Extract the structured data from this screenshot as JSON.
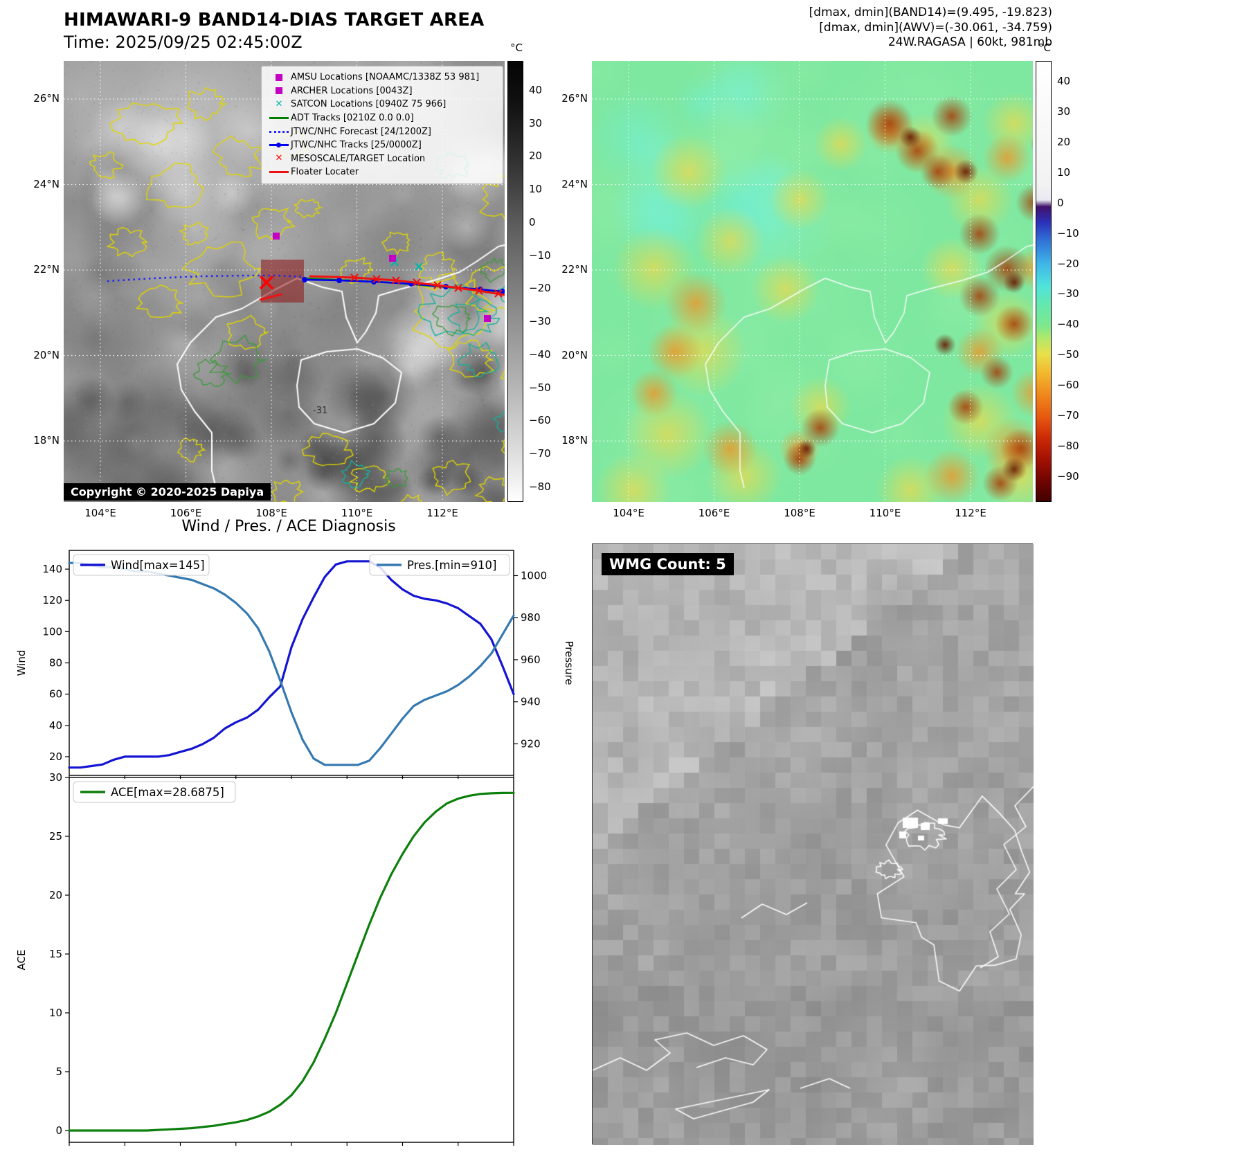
{
  "header": {
    "title": "HIMAWARI-9 BAND14-DIAS TARGET AREA",
    "subtitle": "Time: 2025/09/25 02:45:00Z",
    "right_lines": [
      "[dmax, dmin](BAND14)=(9.495, -19.823)",
      "[dmax, dmin](AWV)=(-30.061, -34.759)",
      "24W.RAGASA | 60kt, 981mb"
    ]
  },
  "band14_map": {
    "lat_labels": [
      "26°N",
      "24°N",
      "22°N",
      "20°N",
      "18°N"
    ],
    "lon_labels": [
      "104°E",
      "106°E",
      "108°E",
      "110°E",
      "112°E"
    ],
    "copyright": "Copyright © 2020-2025 Dapiya",
    "annotation": "-31",
    "colorbar": {
      "unit": "°C",
      "ticks": [
        40,
        30,
        20,
        10,
        0,
        -10,
        -20,
        -30,
        -40,
        -50,
        -60,
        -70,
        -80
      ]
    },
    "legend": [
      {
        "label": "AMSU Locations [NOAAMC/1338Z 53 981]",
        "marker": "square",
        "color": "#c400c4"
      },
      {
        "label": "ARCHER Locations [0043Z]",
        "marker": "square",
        "color": "#c400c4"
      },
      {
        "label": "SATCON Locations [0940Z 75 966]",
        "marker": "x",
        "color": "#00b5ad"
      },
      {
        "label": "ADT Tracks [0210Z 0.0 0.0]",
        "marker": "line",
        "color": "#007f00"
      },
      {
        "label": "JTWC/NHC Forecast [24/1200Z]",
        "marker": "dotted",
        "color": "#2222ff"
      },
      {
        "label": "JTWC/NHC Tracks [25/0000Z]",
        "marker": "line-dot",
        "color": "#0000ee"
      },
      {
        "label": "MESOSCALE/TARGET Location",
        "marker": "x",
        "color": "#ff0000"
      },
      {
        "label": "Floater Locater",
        "marker": "line",
        "color": "#ee1111"
      }
    ]
  },
  "awv_map": {
    "lat_labels": [
      "26°N",
      "24°N",
      "22°N",
      "20°N",
      "18°N"
    ],
    "lon_labels": [
      "104°E",
      "106°E",
      "108°E",
      "110°E",
      "112°E"
    ],
    "colorbar": {
      "unit": "°C",
      "ticks": [
        40,
        30,
        20,
        10,
        0,
        -10,
        -20,
        -30,
        -40,
        -50,
        -60,
        -70,
        -80,
        -90
      ]
    }
  },
  "wmg_map": {
    "label": "WMG Count: 5"
  },
  "chart_data": [
    {
      "type": "line",
      "title": "Wind / Pres. / ACE Diagnosis",
      "x_range": [
        0,
        40
      ],
      "left_axis": {
        "label": "Wind",
        "ticks": [
          20,
          40,
          60,
          80,
          100,
          120,
          140
        ],
        "range": [
          8,
          152
        ]
      },
      "right_axis": {
        "label": "Pressure",
        "ticks": [
          920,
          940,
          960,
          980,
          1000
        ],
        "range": [
          905,
          1012
        ]
      },
      "series": [
        {
          "name": "Wind[max=145]",
          "axis": "left",
          "color": "#1414d2",
          "values": [
            13,
            13,
            14,
            15,
            18,
            20,
            20,
            20,
            20,
            21,
            23,
            25,
            28,
            32,
            38,
            42,
            45,
            50,
            58,
            65,
            90,
            108,
            122,
            135,
            143,
            145,
            145,
            145,
            141,
            133,
            127,
            123,
            121,
            120,
            118,
            115,
            110,
            105,
            95,
            78,
            60
          ]
        },
        {
          "name": "Pres.[min=910]",
          "axis": "right",
          "color": "#3579b1",
          "values": [
            1006,
            1006,
            1005,
            1004,
            1004,
            1003,
            1002,
            1002,
            1001,
            1000,
            999,
            998,
            996,
            994,
            991,
            987,
            982,
            975,
            964,
            950,
            935,
            922,
            913,
            910,
            910,
            910,
            910,
            912,
            918,
            925,
            932,
            938,
            941,
            943,
            945,
            948,
            952,
            957,
            963,
            972,
            981
          ]
        }
      ],
      "legend_position": "top-left and top-right",
      "grid": false
    },
    {
      "type": "line",
      "x_range": [
        0,
        40
      ],
      "left_axis": {
        "label": "ACE",
        "ticks": [
          0,
          5,
          10,
          15,
          20,
          25,
          30
        ],
        "range": [
          -1,
          30
        ]
      },
      "series": [
        {
          "name": "ACE[max=28.6875]",
          "axis": "left",
          "color": "#0d7f0d",
          "values": [
            0,
            0,
            0,
            0,
            0,
            0,
            0,
            0,
            0.05,
            0.1,
            0.15,
            0.2,
            0.3,
            0.4,
            0.55,
            0.7,
            0.9,
            1.2,
            1.6,
            2.2,
            3,
            4.2,
            5.8,
            7.8,
            10,
            12.5,
            15,
            17.5,
            19.8,
            21.8,
            23.5,
            25,
            26.2,
            27.1,
            27.8,
            28.2,
            28.45,
            28.6,
            28.65,
            28.68,
            28.6875
          ]
        }
      ],
      "legend_position": "top-left",
      "grid": false
    }
  ]
}
